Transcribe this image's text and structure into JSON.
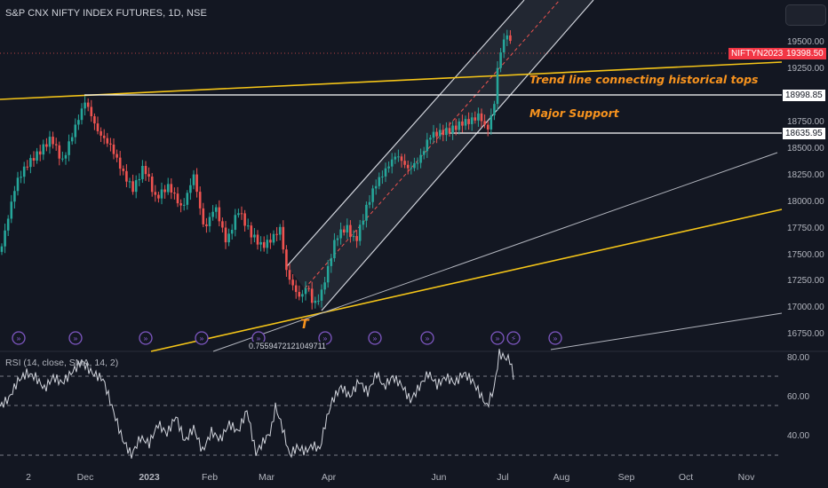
{
  "header": {
    "title": "S&P CNX NIFTY INDEX FUTURES, 1D, NSE"
  },
  "annotations": {
    "trend_tops": "Trend line connecting historical tops",
    "major_support": "Major Support",
    "marker_t": "T",
    "stray_number": "0.7559472121049711"
  },
  "colors": {
    "background": "#131722",
    "up": "#26a69a",
    "down": "#ef5350",
    "trendline": "#f5c518",
    "annotation": "#f7931e",
    "rsi": "#d1d4dc"
  },
  "price_badges": {
    "symbol": "NIFTYN2023",
    "last": "19398.50",
    "resistance": "18998.85",
    "support": "18635.95"
  },
  "rsi": {
    "label": "RSI (14, close, SMA, 14, 2)",
    "levels": [
      "80.00",
      "60.00",
      "40.00"
    ]
  },
  "chart_data": {
    "type": "candlestick",
    "title": "S&P CNX NIFTY INDEX FUTURES, 1D, NSE",
    "y_ticks": [
      "19500.00",
      "19250.00",
      "19000.00",
      "18750.00",
      "18500.00",
      "18250.00",
      "18000.00",
      "17750.00",
      "17500.00",
      "17250.00",
      "17000.00",
      "16750.00"
    ],
    "x_ticks": [
      "2",
      "Dec",
      "2023",
      "Feb",
      "Mar",
      "Apr",
      "Jun",
      "Jul",
      "Aug",
      "Sep",
      "Oct",
      "Nov"
    ],
    "ylim": [
      16700,
      19600
    ],
    "close_path": [
      [
        0,
        17520
      ],
      [
        8,
        17800
      ],
      [
        18,
        18150
      ],
      [
        30,
        18300
      ],
      [
        45,
        18420
      ],
      [
        58,
        18560
      ],
      [
        70,
        18350
      ],
      [
        82,
        18650
      ],
      [
        96,
        18980
      ],
      [
        110,
        18700
      ],
      [
        125,
        18550
      ],
      [
        140,
        18250
      ],
      [
        150,
        18100
      ],
      [
        162,
        18300
      ],
      [
        175,
        17980
      ],
      [
        190,
        18100
      ],
      [
        205,
        17900
      ],
      [
        218,
        18250
      ],
      [
        230,
        17750
      ],
      [
        242,
        18000
      ],
      [
        255,
        17650
      ],
      [
        268,
        17950
      ],
      [
        282,
        17700
      ],
      [
        295,
        17550
      ],
      [
        305,
        17600
      ],
      [
        316,
        17700
      ],
      [
        322,
        17300
      ],
      [
        330,
        17150
      ],
      [
        338,
        17050
      ],
      [
        346,
        17200
      ],
      [
        352,
        17020
      ],
      [
        360,
        17100
      ],
      [
        368,
        17350
      ],
      [
        378,
        17700
      ],
      [
        390,
        17800
      ],
      [
        400,
        17650
      ],
      [
        412,
        17950
      ],
      [
        422,
        18150
      ],
      [
        432,
        18250
      ],
      [
        446,
        18400
      ],
      [
        460,
        18250
      ],
      [
        472,
        18350
      ],
      [
        484,
        18600
      ],
      [
        496,
        18650
      ],
      [
        508,
        18700
      ],
      [
        520,
        18780
      ],
      [
        530,
        18800
      ],
      [
        540,
        18850
      ],
      [
        548,
        18680
      ],
      [
        556,
        18900
      ],
      [
        560,
        19250
      ],
      [
        566,
        19500
      ],
      [
        572,
        19550
      ],
      [
        578,
        19398
      ]
    ],
    "horizontal_levels": [
      18998.85,
      18635.95
    ],
    "rsi_levels": [
      70,
      55,
      30
    ],
    "rsi_ylim": [
      20,
      85
    ],
    "rsi_path": [
      [
        0,
        55
      ],
      [
        10,
        59
      ],
      [
        20,
        68
      ],
      [
        30,
        72
      ],
      [
        40,
        70
      ],
      [
        50,
        64
      ],
      [
        60,
        70
      ],
      [
        70,
        67
      ],
      [
        80,
        72
      ],
      [
        92,
        78
      ],
      [
        104,
        72
      ],
      [
        116,
        69
      ],
      [
        128,
        52
      ],
      [
        138,
        38
      ],
      [
        148,
        30
      ],
      [
        158,
        39
      ],
      [
        168,
        36
      ],
      [
        178,
        46
      ],
      [
        188,
        41
      ],
      [
        198,
        50
      ],
      [
        208,
        37
      ],
      [
        218,
        44
      ],
      [
        228,
        32
      ],
      [
        238,
        42
      ],
      [
        248,
        38
      ],
      [
        258,
        46
      ],
      [
        268,
        42
      ],
      [
        278,
        53
      ],
      [
        288,
        31
      ],
      [
        298,
        38
      ],
      [
        305,
        42
      ],
      [
        310,
        55
      ],
      [
        318,
        44
      ],
      [
        326,
        30
      ],
      [
        334,
        34
      ],
      [
        344,
        32
      ],
      [
        352,
        35
      ],
      [
        360,
        33
      ],
      [
        366,
        46
      ],
      [
        374,
        58
      ],
      [
        384,
        65
      ],
      [
        394,
        60
      ],
      [
        404,
        68
      ],
      [
        414,
        62
      ],
      [
        424,
        72
      ],
      [
        432,
        65
      ],
      [
        442,
        70
      ],
      [
        452,
        66
      ],
      [
        462,
        58
      ],
      [
        472,
        65
      ],
      [
        482,
        72
      ],
      [
        492,
        66
      ],
      [
        502,
        70
      ],
      [
        512,
        67
      ],
      [
        522,
        72
      ],
      [
        532,
        68
      ],
      [
        542,
        60
      ],
      [
        548,
        55
      ],
      [
        556,
        64
      ],
      [
        562,
        82
      ],
      [
        568,
        80
      ],
      [
        574,
        79
      ],
      [
        578,
        70
      ]
    ]
  }
}
